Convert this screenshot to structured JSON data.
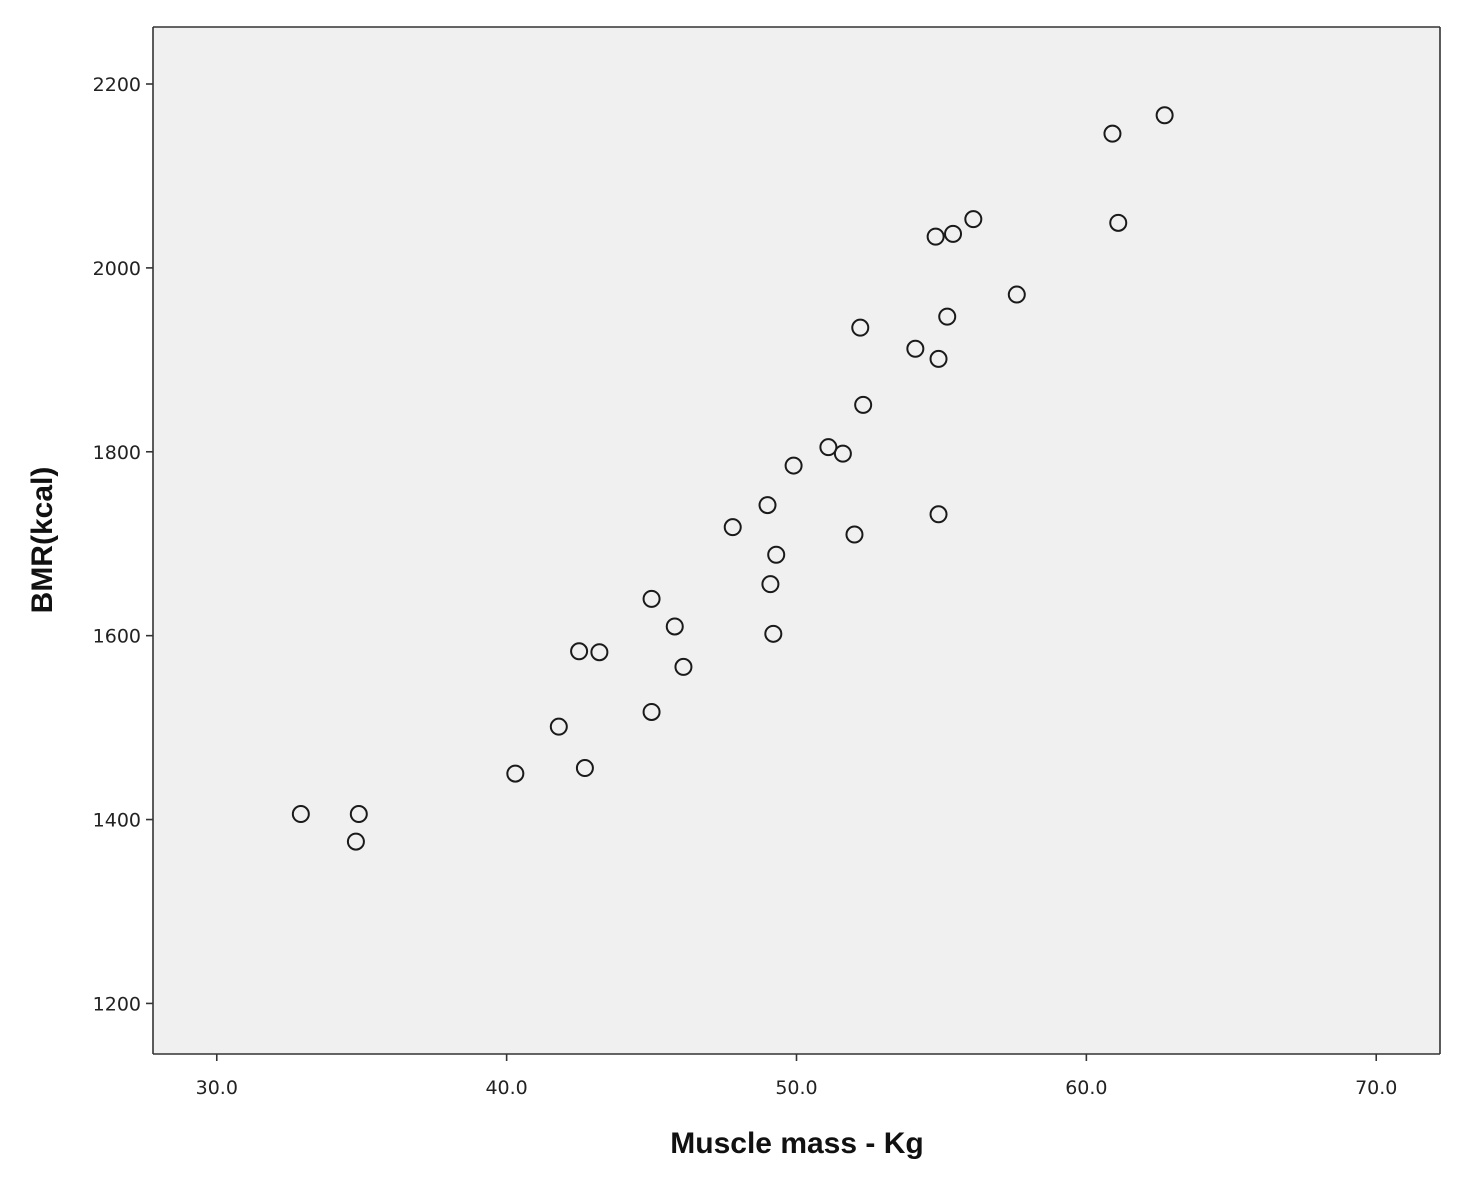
{
  "chart_data": {
    "type": "scatter",
    "title": "",
    "xlabel": "Muscle mass - Kg",
    "ylabel": "BMR(kcal)",
    "xlim": [
      27.8,
      72.2
    ],
    "ylim": [
      1145,
      2262
    ],
    "xticks": [
      30.0,
      40.0,
      50.0,
      60.0,
      70.0
    ],
    "xtick_labels": [
      "30.0",
      "40.0",
      "50.0",
      "60.0",
      "70.0"
    ],
    "yticks": [
      1200,
      1400,
      1600,
      1800,
      2000,
      2200
    ],
    "ytick_labels": [
      "1200",
      "1400",
      "1600",
      "1800",
      "2000",
      "2200"
    ],
    "grid": false,
    "legend": "none",
    "plot_background": "#f0f0f0",
    "marker": "hollow-circle",
    "points": [
      {
        "x": 32.9,
        "y": 1406
      },
      {
        "x": 34.9,
        "y": 1406
      },
      {
        "x": 34.8,
        "y": 1376
      },
      {
        "x": 40.3,
        "y": 1450
      },
      {
        "x": 41.8,
        "y": 1501
      },
      {
        "x": 42.7,
        "y": 1456
      },
      {
        "x": 42.5,
        "y": 1583
      },
      {
        "x": 43.2,
        "y": 1582
      },
      {
        "x": 45.0,
        "y": 1517
      },
      {
        "x": 45.0,
        "y": 1640
      },
      {
        "x": 45.8,
        "y": 1610
      },
      {
        "x": 46.1,
        "y": 1566
      },
      {
        "x": 47.8,
        "y": 1718
      },
      {
        "x": 49.0,
        "y": 1742
      },
      {
        "x": 49.1,
        "y": 1656
      },
      {
        "x": 49.3,
        "y": 1688
      },
      {
        "x": 49.2,
        "y": 1602
      },
      {
        "x": 49.9,
        "y": 1785
      },
      {
        "x": 51.1,
        "y": 1805
      },
      {
        "x": 51.6,
        "y": 1798
      },
      {
        "x": 52.0,
        "y": 1710
      },
      {
        "x": 52.2,
        "y": 1935
      },
      {
        "x": 52.3,
        "y": 1851
      },
      {
        "x": 54.1,
        "y": 1912
      },
      {
        "x": 54.9,
        "y": 1901
      },
      {
        "x": 54.9,
        "y": 1732
      },
      {
        "x": 55.2,
        "y": 1947
      },
      {
        "x": 54.8,
        "y": 2034
      },
      {
        "x": 55.4,
        "y": 2037
      },
      {
        "x": 56.1,
        "y": 2053
      },
      {
        "x": 57.6,
        "y": 1971
      },
      {
        "x": 60.9,
        "y": 2146
      },
      {
        "x": 61.1,
        "y": 2049
      },
      {
        "x": 62.7,
        "y": 2166
      }
    ]
  }
}
